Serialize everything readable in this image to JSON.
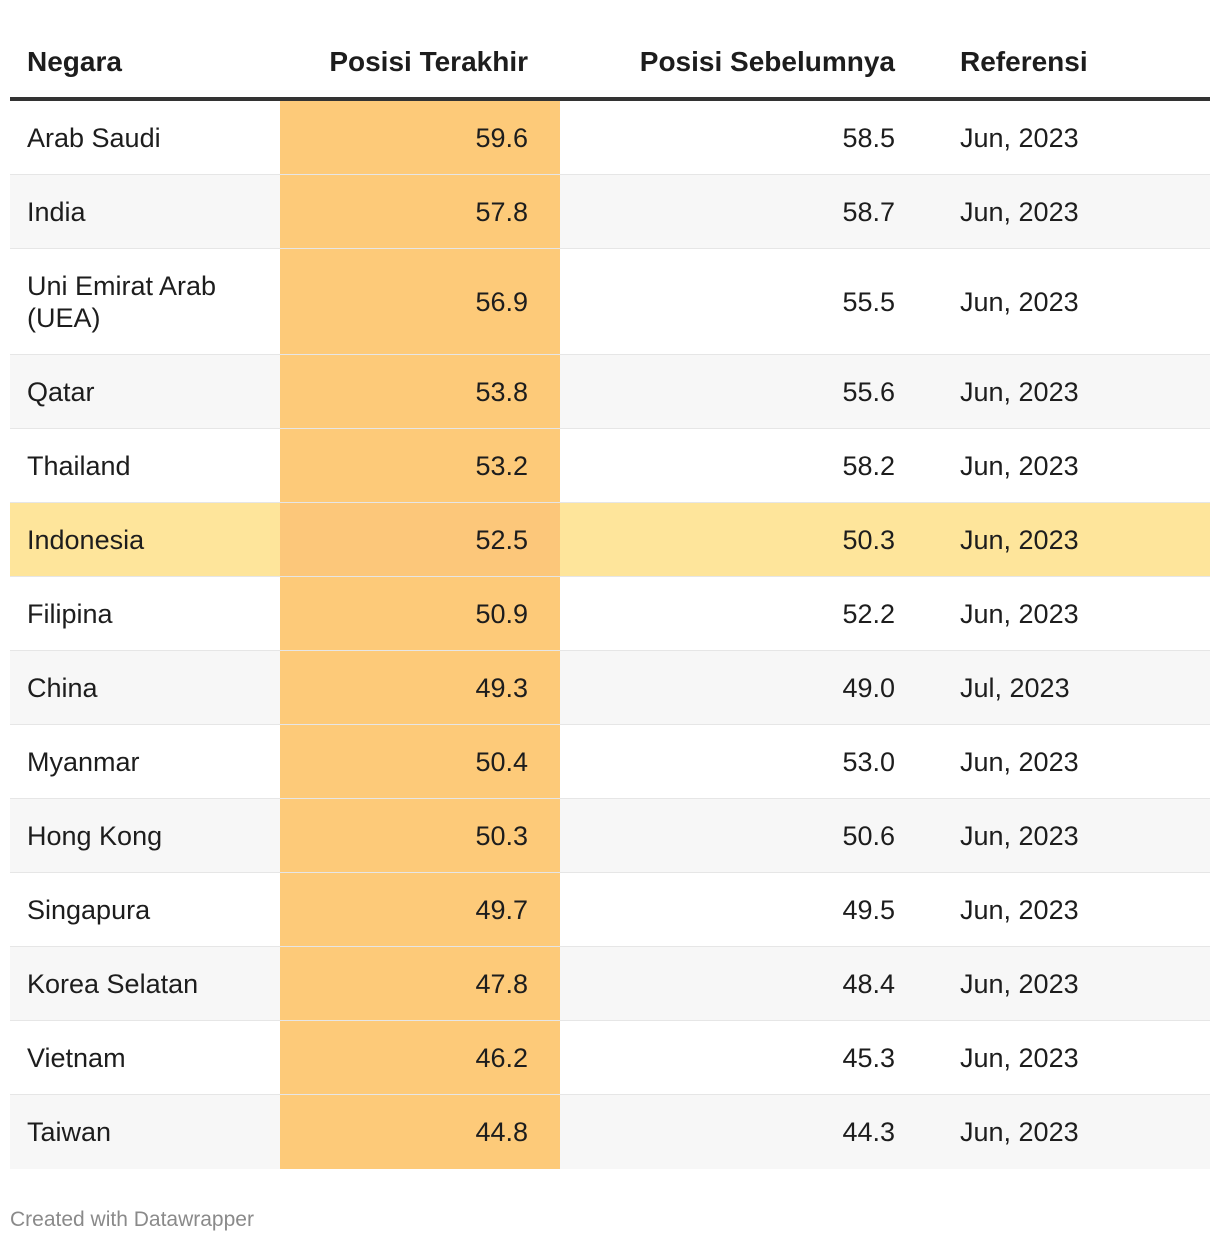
{
  "chart_data": {
    "type": "table",
    "columns": [
      "Negara",
      "Posisi Terakhir",
      "Posisi Sebelumnya",
      "Referensi"
    ],
    "rows": [
      {
        "country": "Arab Saudi",
        "latest": "59.6",
        "previous": "58.5",
        "reference": "Jun, 2023"
      },
      {
        "country": "India",
        "latest": "57.8",
        "previous": "58.7",
        "reference": "Jun, 2023"
      },
      {
        "country": "Uni Emirat Arab (UEA)",
        "latest": "56.9",
        "previous": "55.5",
        "reference": "Jun, 2023"
      },
      {
        "country": "Qatar",
        "latest": "53.8",
        "previous": "55.6",
        "reference": "Jun, 2023"
      },
      {
        "country": "Thailand",
        "latest": "53.2",
        "previous": "58.2",
        "reference": "Jun, 2023"
      },
      {
        "country": "Indonesia",
        "latest": "52.5",
        "previous": "50.3",
        "reference": "Jun, 2023",
        "highlight": true
      },
      {
        "country": "Filipina",
        "latest": "50.9",
        "previous": "52.2",
        "reference": "Jun, 2023"
      },
      {
        "country": "China",
        "latest": "49.3",
        "previous": "49.0",
        "reference": "Jul, 2023"
      },
      {
        "country": "Myanmar",
        "latest": "50.4",
        "previous": "53.0",
        "reference": "Jun, 2023"
      },
      {
        "country": "Hong Kong",
        "latest": "50.3",
        "previous": "50.6",
        "reference": "Jun, 2023"
      },
      {
        "country": "Singapura",
        "latest": "49.7",
        "previous": "49.5",
        "reference": "Jun, 2023"
      },
      {
        "country": "Korea Selatan",
        "latest": "47.8",
        "previous": "48.4",
        "reference": "Jun, 2023"
      },
      {
        "country": "Vietnam",
        "latest": "46.2",
        "previous": "45.3",
        "reference": "Jun, 2023"
      },
      {
        "country": "Taiwan",
        "latest": "44.8",
        "previous": "44.3",
        "reference": "Jun, 2023"
      }
    ]
  },
  "colors": {
    "highlight_column": "#fdca79",
    "highlight_column_on_highlight_row": "#fcc77a",
    "highlight_row": "#fee59b",
    "stripe": "#f7f7f7",
    "white": "#ffffff"
  },
  "footer": "Created with Datawrapper"
}
